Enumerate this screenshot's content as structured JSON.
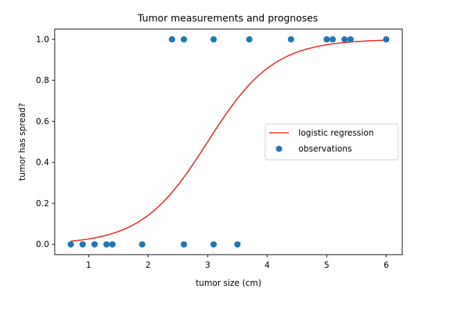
{
  "chart_data": {
    "type": "scatter",
    "title": "Tumor measurements and prognoses",
    "xlabel": "tumor size (cm)",
    "ylabel": "tumor has spread?",
    "xlim": [
      0.43,
      6.27
    ],
    "ylim": [
      -0.05,
      1.05
    ],
    "xticks": [
      1,
      2,
      3,
      4,
      5,
      6
    ],
    "xtick_labels": [
      "1",
      "2",
      "3",
      "4",
      "5",
      "6"
    ],
    "yticks": [
      0.0,
      0.2,
      0.4,
      0.6,
      0.8,
      1.0
    ],
    "ytick_labels": [
      "0.0",
      "0.2",
      "0.4",
      "0.6",
      "0.8",
      "1.0"
    ],
    "grid": false,
    "legend_position": "center-right",
    "series": [
      {
        "name": "logistic regression",
        "kind": "line",
        "color": "#e8231c",
        "model": {
          "type": "logistic",
          "midpoint": 3.0,
          "slope": 1.8
        },
        "x_range": [
          0.7,
          6.0
        ]
      },
      {
        "name": "observations",
        "kind": "scatter",
        "color": "#1f77b4",
        "points": [
          [
            0.7,
            0
          ],
          [
            0.9,
            0
          ],
          [
            1.1,
            0
          ],
          [
            1.3,
            0
          ],
          [
            1.4,
            0
          ],
          [
            1.9,
            0
          ],
          [
            2.6,
            0
          ],
          [
            3.1,
            0
          ],
          [
            3.5,
            0
          ],
          [
            2.4,
            1
          ],
          [
            2.6,
            1
          ],
          [
            3.1,
            1
          ],
          [
            3.7,
            1
          ],
          [
            4.4,
            1
          ],
          [
            5.0,
            1
          ],
          [
            5.1,
            1
          ],
          [
            5.3,
            1
          ],
          [
            5.4,
            1
          ],
          [
            6.0,
            1
          ]
        ]
      }
    ]
  }
}
